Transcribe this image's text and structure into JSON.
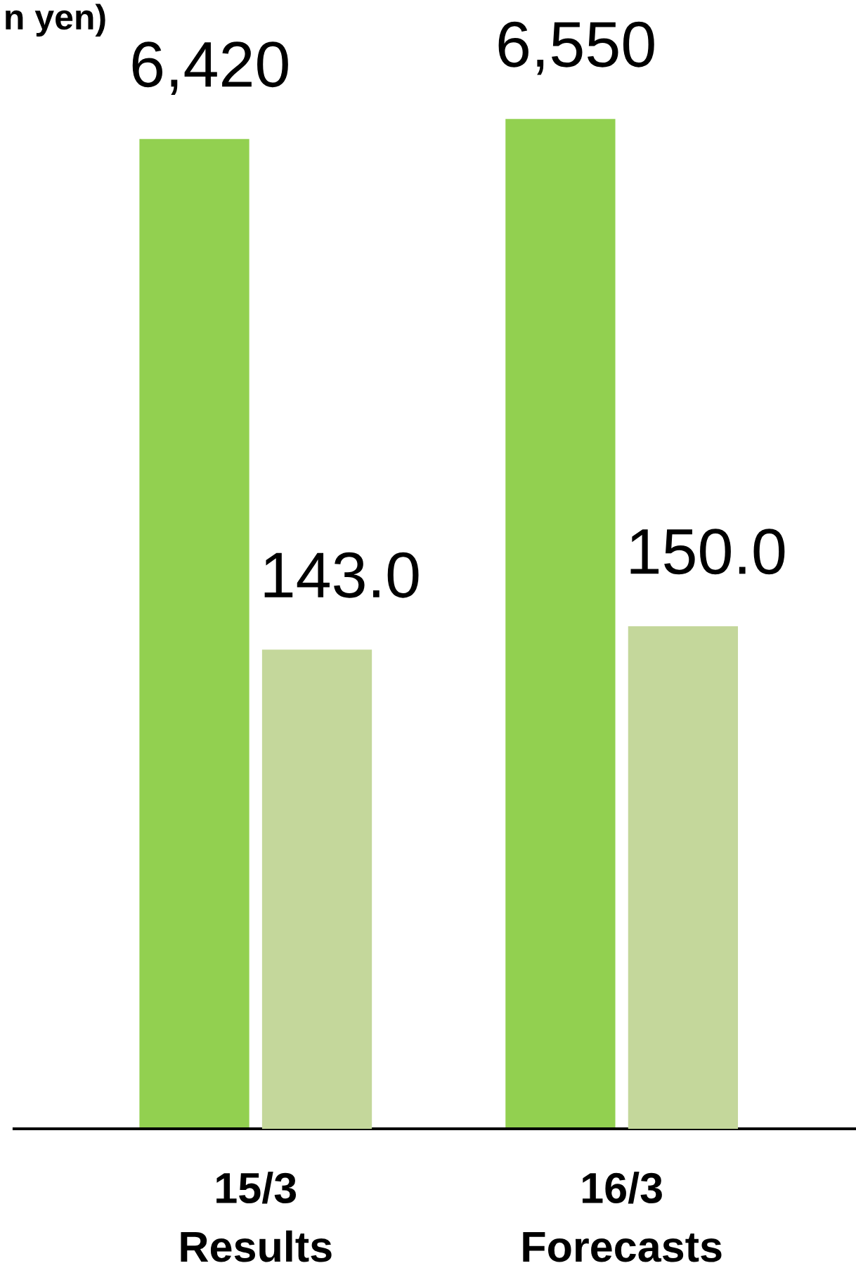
{
  "chart_data": {
    "type": "bar",
    "categories": [
      "15/3\nResults",
      "16/3\nForecasts"
    ],
    "series": [
      {
        "color": "#92d050",
        "values": [
          6420,
          6550
        ],
        "value_labels": [
          "6,420",
          "6,550"
        ]
      },
      {
        "color": "#c4d79b",
        "values": [
          143.0,
          150.0
        ],
        "value_labels": [
          "143.0",
          "150.0"
        ],
        "axis": "y2"
      }
    ],
    "tick_labels": "x",
    "annotations": [
      "n yen)"
    ]
  }
}
